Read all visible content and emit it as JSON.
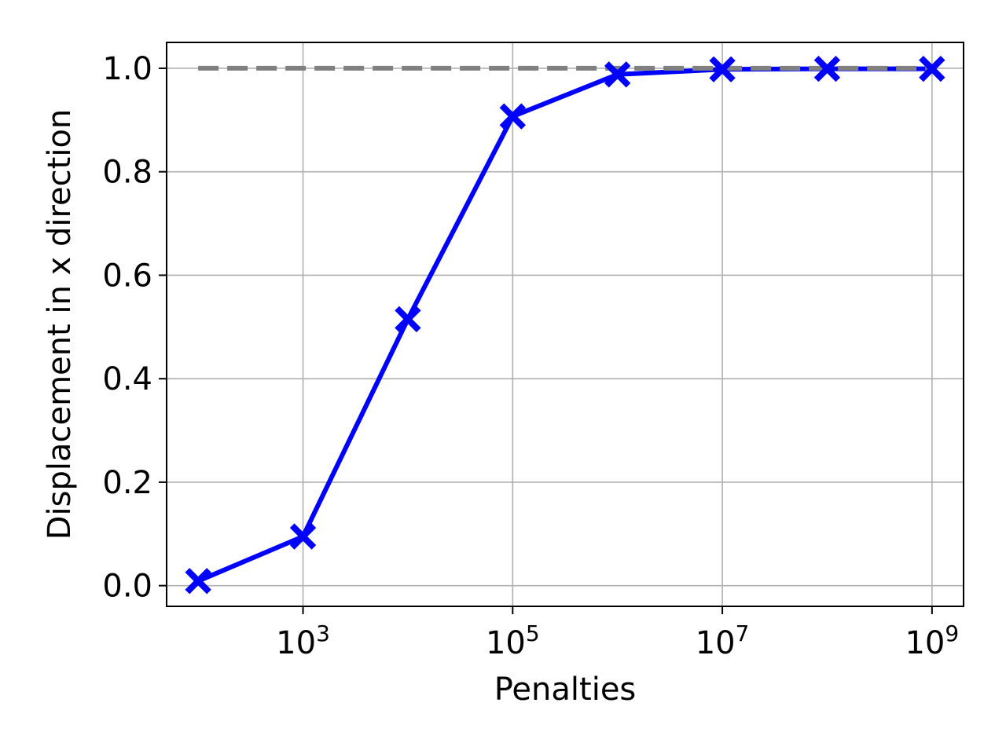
{
  "chart_data": {
    "type": "line",
    "xscale": "log",
    "xlabel": "Penalties",
    "ylabel": "Displacement in x direction",
    "xlim": [
      50,
      2000000000
    ],
    "ylim": [
      -0.04,
      1.05
    ],
    "grid": true,
    "legend": "none",
    "x_ticks": [
      {
        "value": 1000,
        "base": "10",
        "exp": "3"
      },
      {
        "value": 100000,
        "base": "10",
        "exp": "5"
      },
      {
        "value": 10000000,
        "base": "10",
        "exp": "7"
      },
      {
        "value": 1000000000,
        "base": "10",
        "exp": "9"
      }
    ],
    "y_ticks": [
      {
        "value": 0.0,
        "label": "0.0"
      },
      {
        "value": 0.2,
        "label": "0.2"
      },
      {
        "value": 0.4,
        "label": "0.4"
      },
      {
        "value": 0.6,
        "label": "0.6"
      },
      {
        "value": 0.8,
        "label": "0.8"
      },
      {
        "value": 1.0,
        "label": "1.0"
      }
    ],
    "series": [
      {
        "style": "solid",
        "marker": "X",
        "color": "#0000ff",
        "x": [
          100,
          1000,
          10000,
          100000,
          1000000,
          10000000,
          100000000,
          1000000000
        ],
        "y": [
          0.009,
          0.095,
          0.515,
          0.907,
          0.988,
          0.998,
          0.999,
          0.999
        ]
      },
      {
        "style": "dashed",
        "color": "#808080",
        "x": [
          100,
          1000000000
        ],
        "y": [
          1.0,
          1.0
        ]
      }
    ]
  }
}
